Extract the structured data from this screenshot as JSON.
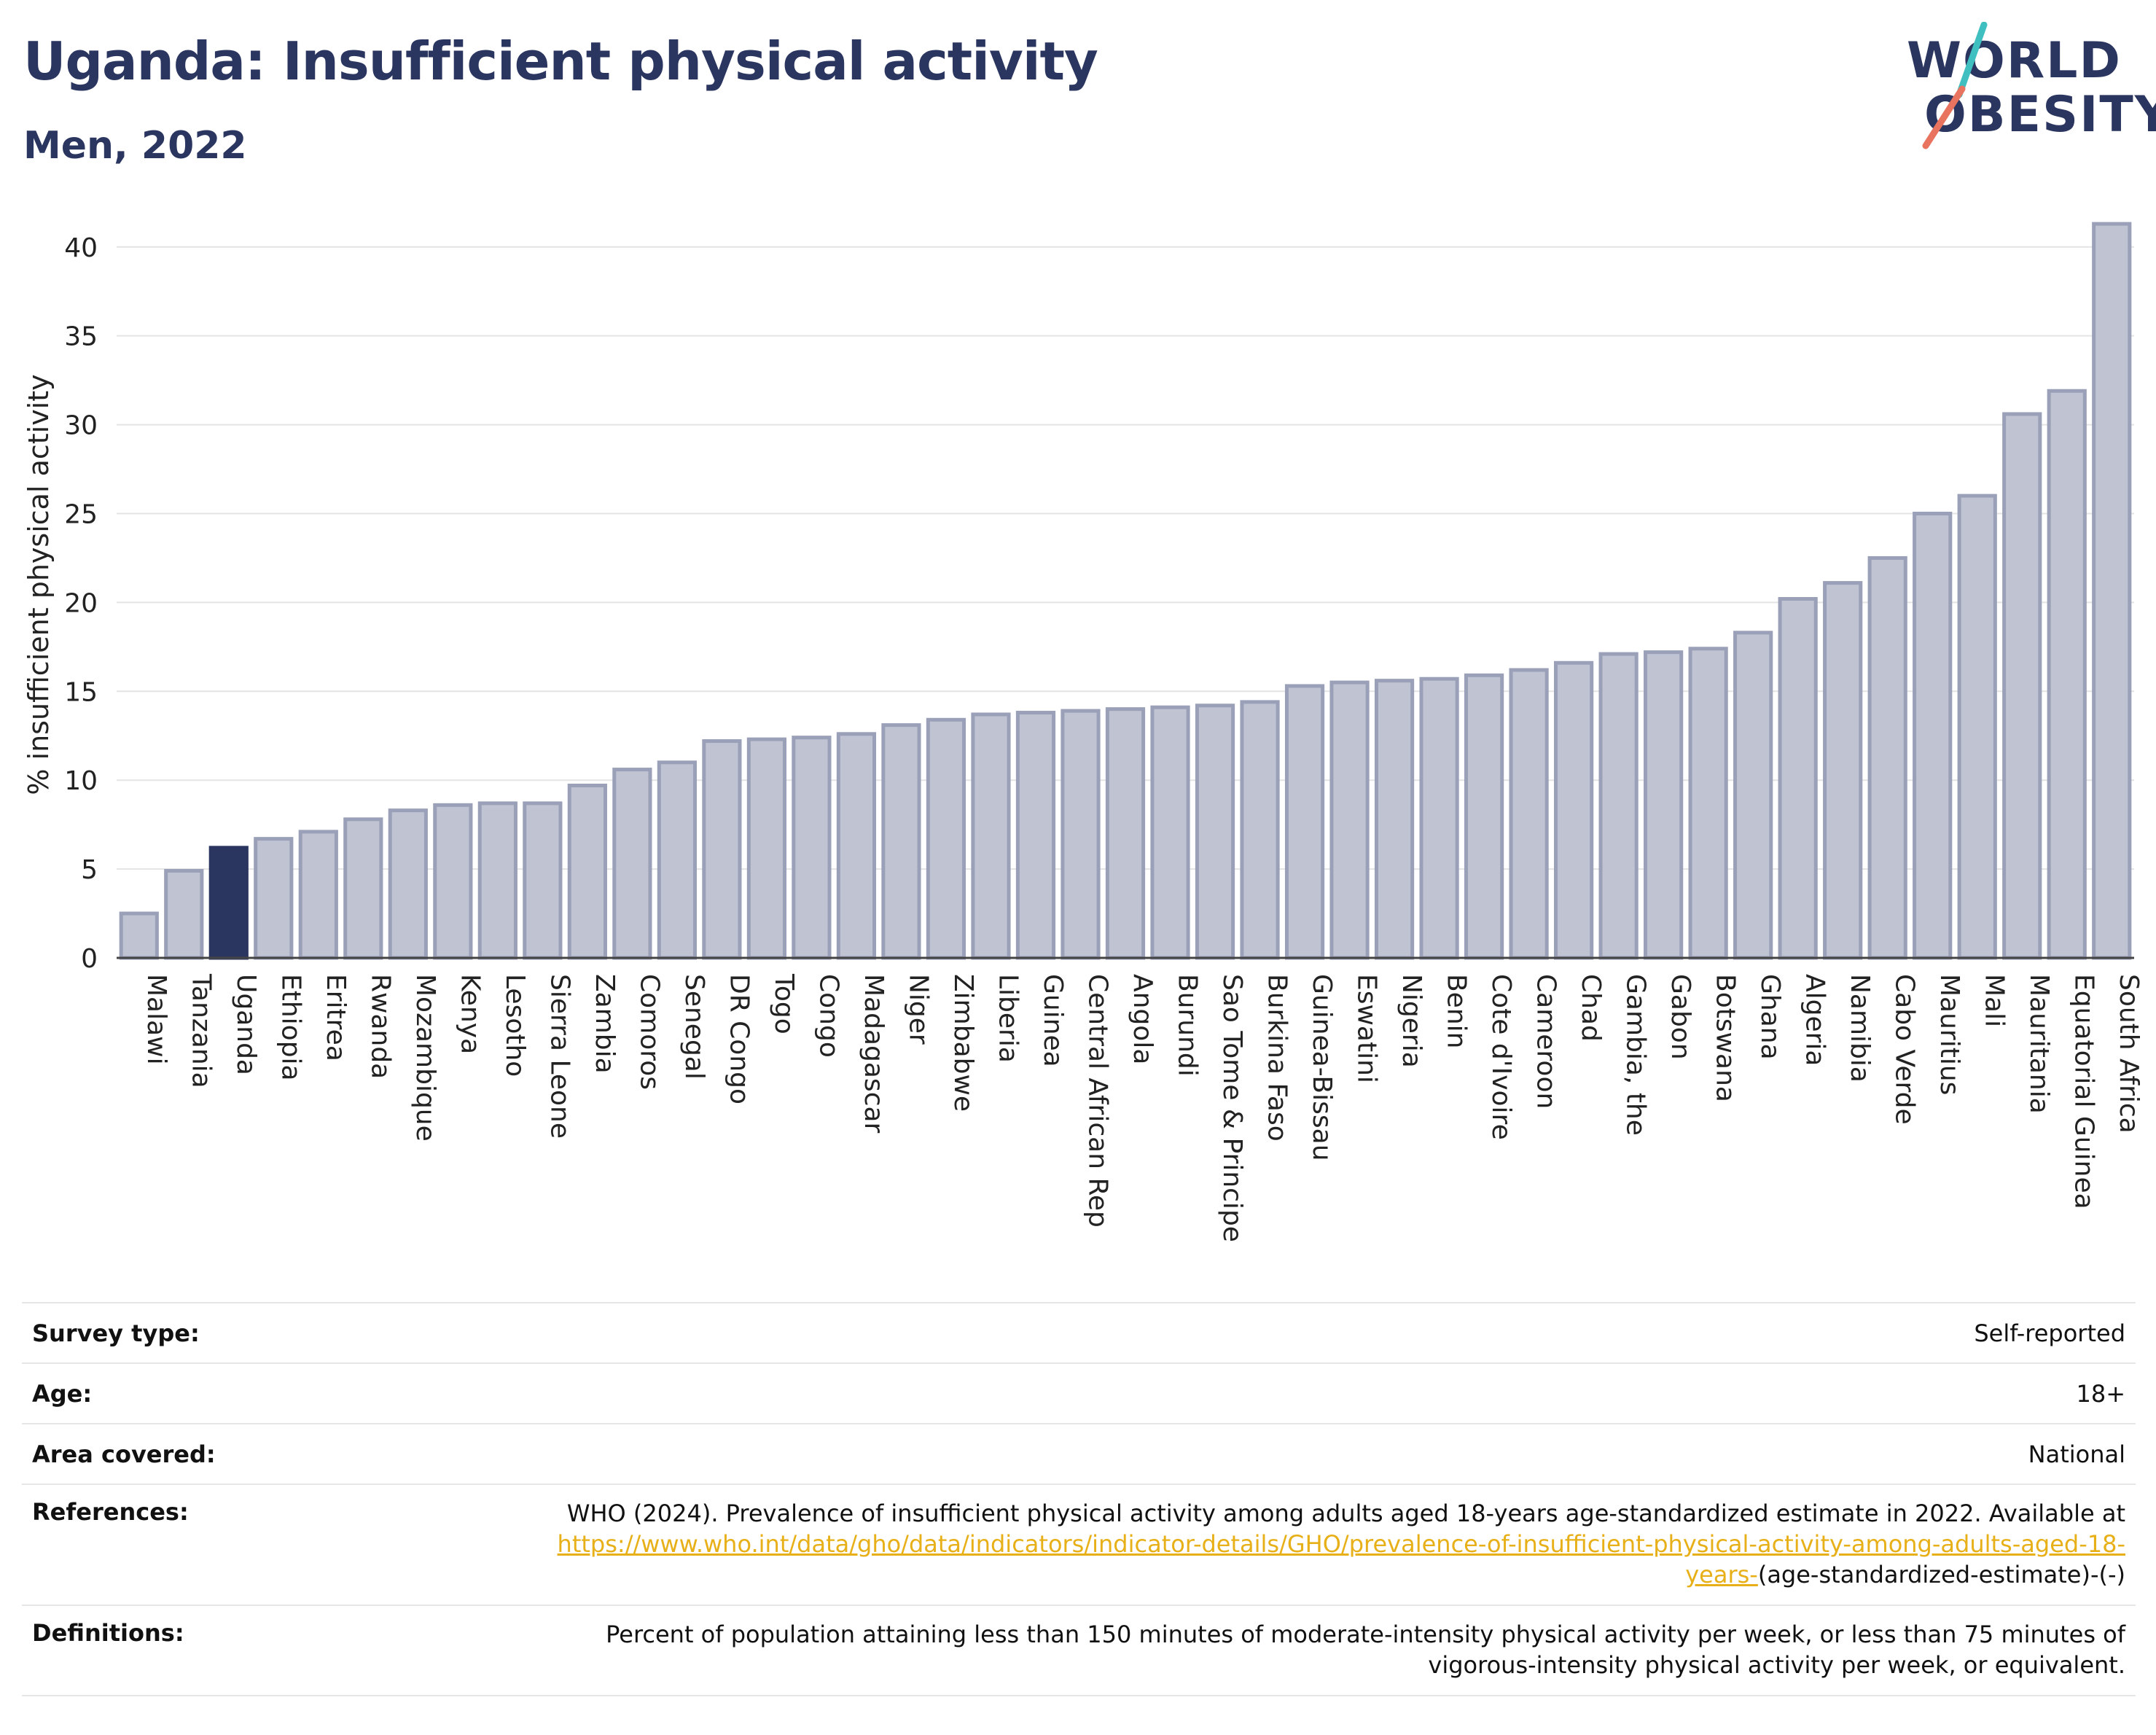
{
  "header": {
    "title": "Uganda: Insufficient physical activity",
    "subtitle": "Men, 2022",
    "logo_text": "WORLD OBESITY"
  },
  "colors": {
    "title": "#2b3660",
    "bar_default": "#bfc3d2",
    "bar_default_stroke": "#9aa0b8",
    "bar_highlight": "#2b3660",
    "logo_teal": "#3fbfbf",
    "logo_coral": "#e8735f",
    "link": "#e8b018"
  },
  "chart_data": {
    "type": "bar",
    "title": "Uganda: Insufficient physical activity",
    "subtitle": "Men, 2022",
    "ylabel": "% insufficient physical activity",
    "xlabel": "",
    "ylim": [
      0,
      42
    ],
    "yticks": [
      0,
      5,
      10,
      15,
      20,
      25,
      30,
      35,
      40
    ],
    "grid": true,
    "highlight": "Uganda",
    "categories": [
      "Malawi",
      "Tanzania",
      "Uganda",
      "Ethiopia",
      "Eritrea",
      "Rwanda",
      "Mozambique",
      "Kenya",
      "Lesotho",
      "Sierra Leone",
      "Zambia",
      "Comoros",
      "Senegal",
      "DR Congo",
      "Togo",
      "Congo",
      "Madagascar",
      "Niger",
      "Zimbabwe",
      "Liberia",
      "Guinea",
      "Central African Rep",
      "Angola",
      "Burundi",
      "Sao Tome & Principe",
      "Burkina Faso",
      "Guinea-Bissau",
      "Eswatini",
      "Nigeria",
      "Benin",
      "Cote d'Ivoire",
      "Cameroon",
      "Chad",
      "Gambia, the",
      "Gabon",
      "Botswana",
      "Ghana",
      "Algeria",
      "Namibia",
      "Cabo Verde",
      "Mauritius",
      "Mali",
      "Mauritania",
      "Equatorial Guinea",
      "South Africa"
    ],
    "values": [
      2.5,
      4.9,
      6.2,
      6.7,
      7.1,
      7.8,
      8.3,
      8.6,
      8.7,
      8.7,
      9.7,
      10.6,
      11.0,
      12.2,
      12.3,
      12.4,
      12.6,
      13.1,
      13.4,
      13.7,
      13.8,
      13.9,
      14.0,
      14.1,
      14.2,
      14.4,
      15.3,
      15.5,
      15.6,
      15.7,
      15.9,
      16.2,
      16.6,
      17.1,
      17.2,
      17.4,
      18.3,
      20.2,
      21.1,
      22.5,
      25.0,
      26.0,
      30.6,
      31.9,
      41.3
    ]
  },
  "info_table": {
    "survey_type_label": "Survey type:",
    "survey_type_value": "Self-reported",
    "age_label": "Age:",
    "age_value": "18+",
    "area_label": "Area covered:",
    "area_value": "National",
    "references_label": "References:",
    "references_text": "WHO (2024). Prevalence of insufficient physical activity among adults aged 18-years age-standardized estimate in 2022. Available at",
    "references_link": "https://www.who.int/data/gho/data/indicators/indicator-details/GHO/prevalence-of-insufficient-physical-activity-among-adults-aged-18-years-",
    "references_suffix": "(age-standardized-estimate)-(-)",
    "definitions_label": "Definitions:",
    "definitions_text": "Percent of population attaining less than 150 minutes of moderate-intensity physical activity per week, or less than 75 minutes of vigorous-intensity physical activity per week, or equivalent."
  }
}
